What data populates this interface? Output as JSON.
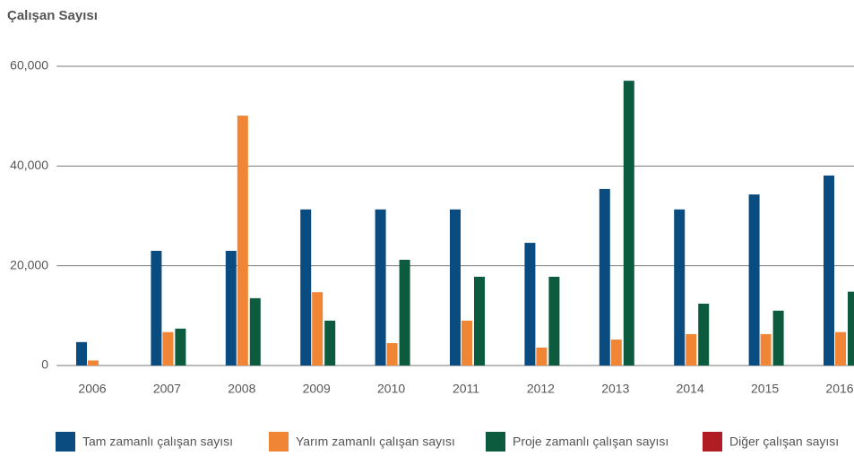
{
  "chart_data": {
    "type": "bar",
    "title": "Çalışan Sayısı",
    "categories": [
      "2006",
      "2007",
      "2008",
      "2009",
      "2010",
      "2011",
      "2012",
      "2013",
      "2014",
      "2015",
      "2016"
    ],
    "series": [
      {
        "name": "Tam zamanlı çalışan sayısı",
        "color": "#0b4c80",
        "values": [
          4700,
          23000,
          23000,
          31300,
          31300,
          31300,
          24600,
          35400,
          31300,
          34300,
          38100
        ]
      },
      {
        "name": "Yarım zamanlı çalışan sayısı",
        "color": "#f08535",
        "values": [
          1000,
          6700,
          50100,
          14700,
          4500,
          9000,
          3600,
          5200,
          6300,
          6300,
          6700
        ]
      },
      {
        "name": "Proje zamanlı çalışan sayısı",
        "color": "#0c5b3e",
        "values": [
          0,
          7400,
          13500,
          9000,
          21200,
          17800,
          17800,
          57100,
          12400,
          11000,
          14800
        ]
      },
      {
        "name": "Diğer çalışan sayısı",
        "color": "#b01e23",
        "values": [
          0,
          0,
          0,
          0,
          0,
          0,
          0,
          0,
          0,
          0,
          0
        ]
      }
    ],
    "ylim": [
      0,
      60000
    ],
    "yticks": [
      0,
      {
        "value": 20000,
        "label": "20,000"
      },
      {
        "value": 40000,
        "label": "40,000"
      },
      {
        "value": 60000,
        "label": "60,000"
      }
    ],
    "grid": true
  }
}
